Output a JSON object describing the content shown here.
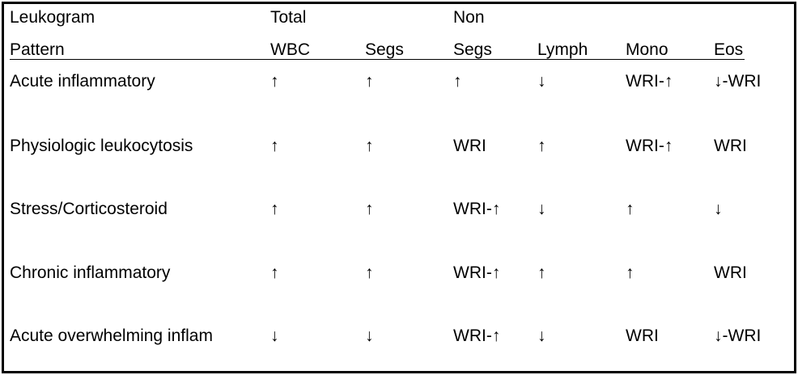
{
  "table": {
    "columns": [
      {
        "lines": [
          "Leukogram",
          "Pattern"
        ]
      },
      {
        "lines": [
          "Total",
          "WBC"
        ]
      },
      {
        "lines": [
          "Segs"
        ]
      },
      {
        "lines": [
          "Non",
          "Segs"
        ]
      },
      {
        "lines": [
          "Lymph"
        ]
      },
      {
        "lines": [
          "Mono"
        ]
      },
      {
        "lines": [
          "Eos"
        ]
      }
    ],
    "rows": [
      [
        "Acute inflammatory",
        "↑",
        "↑",
        "↑",
        "↓",
        "WRI-↑",
        "↓-WRI"
      ],
      [
        "Physiologic leukocytosis",
        "↑",
        "↑",
        "WRI",
        "↑",
        "WRI-↑",
        "WRI"
      ],
      [
        "Stress/Corticosteroid",
        "↑",
        "↑",
        "WRI-↑",
        "↓",
        "↑",
        "↓"
      ],
      [
        "Chronic inflammatory",
        "↑",
        "↑",
        "WRI-↑",
        "↑",
        "↑",
        "WRI"
      ],
      [
        "Acute overwhelming inflam",
        "↓",
        "↓",
        "WRI-↑",
        "↓",
        "WRI",
        "↓-WRI"
      ]
    ]
  }
}
